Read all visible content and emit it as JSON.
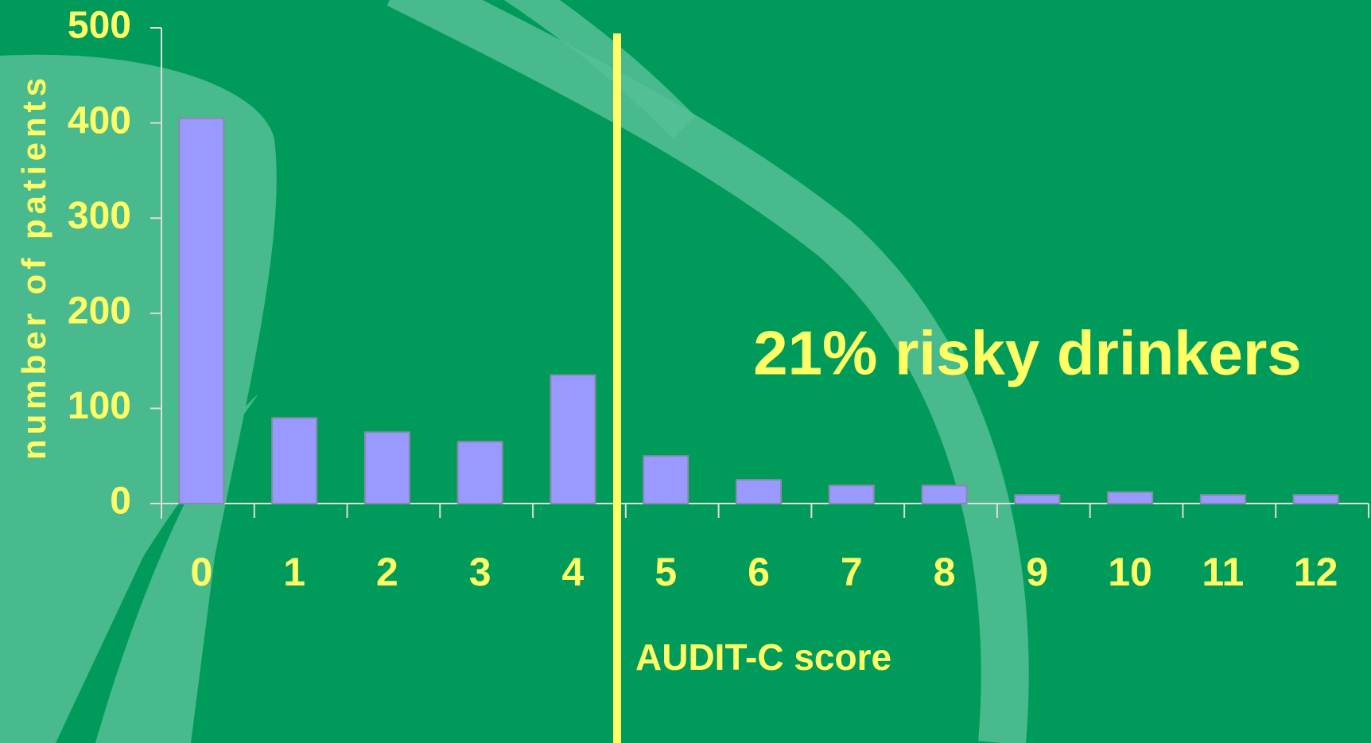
{
  "chart_data": {
    "type": "bar",
    "categories": [
      "0",
      "1",
      "2",
      "3",
      "4",
      "5",
      "6",
      "7",
      "8",
      "9",
      "10",
      "11",
      "12"
    ],
    "values": [
      405,
      90,
      75,
      65,
      135,
      50,
      25,
      19,
      19,
      9,
      12,
      9,
      9
    ],
    "color": "#9999ff",
    "x_label": "AUDIT-C score",
    "y_label": "number of patients",
    "annotation": "21% risky drinkers",
    "ylim": [
      0,
      500
    ],
    "yticks": [
      0,
      100,
      200,
      300,
      400,
      500
    ],
    "grid": false
  }
}
